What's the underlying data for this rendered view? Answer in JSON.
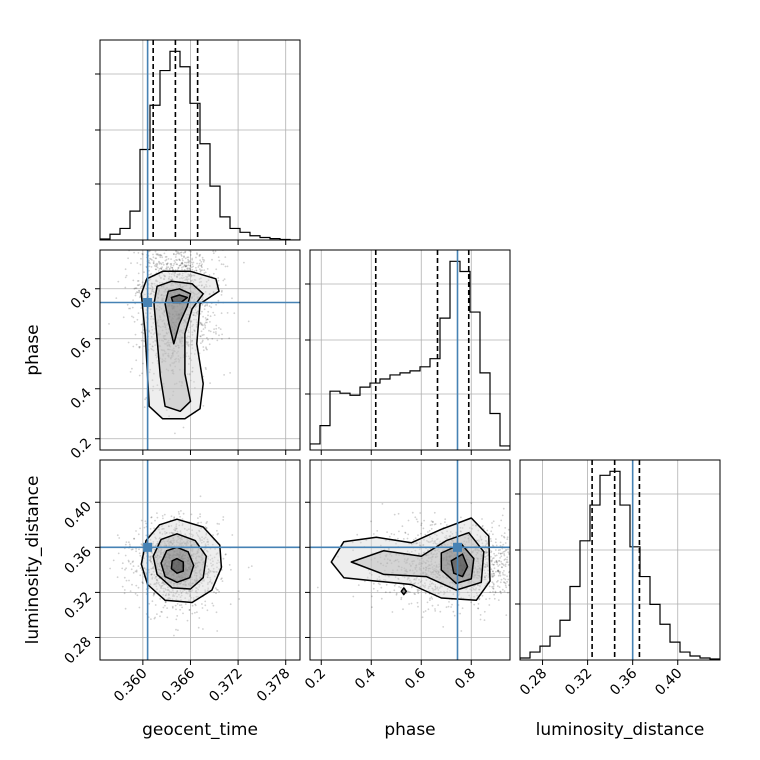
{
  "chart_data": {
    "type": "corner",
    "parameters": [
      "geocent_time",
      "phase",
      "luminosity_distance"
    ],
    "axis_labels": {
      "x": [
        "geocent_time",
        "phase",
        "luminosity_distance"
      ],
      "y": [
        "",
        "phase",
        "luminosity_distance"
      ]
    },
    "ranges": [
      [
        0.3546,
        0.3798
      ],
      [
        0.155,
        0.955
      ],
      [
        0.26,
        0.4375
      ]
    ],
    "ticks": [
      {
        "values": [
          0.36,
          0.366,
          0.372,
          0.378
        ],
        "labels": [
          "0.360",
          "0.366",
          "0.372",
          "0.378"
        ]
      },
      {
        "values": [
          0.2,
          0.4,
          0.6,
          0.8
        ],
        "labels": [
          "0.2",
          "0.4",
          "0.6",
          "0.8"
        ]
      },
      {
        "values": [
          0.28,
          0.32,
          0.36,
          0.4
        ],
        "labels": [
          "0.28",
          "0.32",
          "0.36",
          "0.40"
        ]
      }
    ],
    "truths": [
      0.3606,
      0.745,
      0.36
    ],
    "quantiles": [
      [
        0.3613,
        0.3641,
        0.3669
      ],
      [
        0.418,
        0.665,
        0.79
      ],
      [
        0.324,
        0.344,
        0.366
      ]
    ],
    "histograms": [
      {
        "parameter": "geocent_time",
        "bin_edges": [
          0.3546,
          0.35586,
          0.35712,
          0.35838,
          0.35964,
          0.3609,
          0.36216,
          0.36342,
          0.36468,
          0.36594,
          0.3672,
          0.36846,
          0.36972,
          0.37098,
          0.37224,
          0.3735,
          0.37476,
          0.37602,
          0.37728,
          0.37854,
          0.3798
        ],
        "counts": [
          0.005,
          0.03,
          0.06,
          0.15,
          0.47,
          0.7,
          0.88,
          0.98,
          0.9,
          0.71,
          0.5,
          0.28,
          0.12,
          0.06,
          0.04,
          0.022,
          0.013,
          0.007,
          0.003,
          0.0
        ]
      },
      {
        "parameter": "phase",
        "bin_edges": [
          0.155,
          0.195,
          0.235,
          0.275,
          0.315,
          0.355,
          0.395,
          0.435,
          0.475,
          0.515,
          0.555,
          0.595,
          0.635,
          0.675,
          0.715,
          0.755,
          0.795,
          0.835,
          0.875,
          0.915,
          0.955
        ],
        "counts": [
          0.03,
          0.12,
          0.29,
          0.28,
          0.27,
          0.31,
          0.33,
          0.35,
          0.37,
          0.38,
          0.39,
          0.41,
          0.45,
          0.65,
          0.93,
          0.88,
          0.68,
          0.38,
          0.18,
          0.02
        ]
      },
      {
        "parameter": "luminosity_distance",
        "bin_edges": [
          0.26,
          0.268875,
          0.27775,
          0.286625,
          0.2955,
          0.304375,
          0.31325,
          0.322125,
          0.331,
          0.339875,
          0.34875,
          0.357625,
          0.3665,
          0.375375,
          0.38425,
          0.393125,
          0.402,
          0.410875,
          0.41975,
          0.428625,
          0.4375
        ],
        "counts": [
          0.01,
          0.04,
          0.07,
          0.12,
          0.2,
          0.37,
          0.6,
          0.78,
          0.93,
          0.95,
          0.78,
          0.57,
          0.42,
          0.28,
          0.18,
          0.09,
          0.04,
          0.02,
          0.01,
          0.005
        ]
      }
    ],
    "pairs": [
      {
        "x": "geocent_time",
        "y": "phase",
        "mode": [
          0.3643,
          0.755
        ],
        "sd": [
          0.0026,
          0.16
        ],
        "contours": [
          [
            [
              0.3605,
              0.84
            ],
            [
              0.3625,
              0.87
            ],
            [
              0.366,
              0.87
            ],
            [
              0.3692,
              0.84
            ],
            [
              0.3696,
              0.79
            ],
            [
              0.3672,
              0.74
            ],
            [
              0.3668,
              0.58
            ],
            [
              0.3676,
              0.42
            ],
            [
              0.3672,
              0.32
            ],
            [
              0.3653,
              0.28
            ],
            [
              0.3625,
              0.28
            ],
            [
              0.3608,
              0.33
            ],
            [
              0.3606,
              0.45
            ],
            [
              0.3603,
              0.62
            ],
            [
              0.3598,
              0.78
            ]
          ],
          [
            [
              0.3618,
              0.81
            ],
            [
              0.3636,
              0.83
            ],
            [
              0.3662,
              0.82
            ],
            [
              0.3676,
              0.78
            ],
            [
              0.3662,
              0.72
            ],
            [
              0.3653,
              0.62
            ],
            [
              0.3653,
              0.46
            ],
            [
              0.366,
              0.35
            ],
            [
              0.3647,
              0.31
            ],
            [
              0.3628,
              0.33
            ],
            [
              0.3622,
              0.45
            ],
            [
              0.3618,
              0.6
            ],
            [
              0.3614,
              0.74
            ]
          ],
          [
            [
              0.3632,
              0.79
            ],
            [
              0.3646,
              0.8
            ],
            [
              0.366,
              0.78
            ],
            [
              0.3656,
              0.73
            ],
            [
              0.3646,
              0.66
            ],
            [
              0.3639,
              0.58
            ],
            [
              0.3633,
              0.66
            ],
            [
              0.3628,
              0.74
            ]
          ],
          [
            [
              0.3636,
              0.765
            ],
            [
              0.3646,
              0.775
            ],
            [
              0.3656,
              0.765
            ],
            [
              0.3648,
              0.745
            ],
            [
              0.3638,
              0.745
            ]
          ]
        ]
      },
      {
        "x": "geocent_time",
        "y": "luminosity_distance",
        "mode": [
          0.3643,
          0.344
        ],
        "sd": [
          0.0026,
          0.018
        ],
        "contours": [
          [
            [
              0.3643,
              0.385
            ],
            [
              0.3676,
              0.378
            ],
            [
              0.3697,
              0.362
            ],
            [
              0.3699,
              0.342
            ],
            [
              0.3687,
              0.322
            ],
            [
              0.3662,
              0.311
            ],
            [
              0.3628,
              0.313
            ],
            [
              0.3606,
              0.327
            ],
            [
              0.3598,
              0.345
            ],
            [
              0.3604,
              0.366
            ],
            [
              0.3621,
              0.38
            ]
          ],
          [
            [
              0.3643,
              0.372
            ],
            [
              0.3666,
              0.366
            ],
            [
              0.368,
              0.352
            ],
            [
              0.3676,
              0.333
            ],
            [
              0.366,
              0.323
            ],
            [
              0.3637,
              0.324
            ],
            [
              0.3618,
              0.336
            ],
            [
              0.3613,
              0.352
            ],
            [
              0.3623,
              0.367
            ]
          ],
          [
            [
              0.3643,
              0.36
            ],
            [
              0.3657,
              0.356
            ],
            [
              0.3664,
              0.344
            ],
            [
              0.3659,
              0.333
            ],
            [
              0.3643,
              0.329
            ],
            [
              0.3628,
              0.334
            ],
            [
              0.3623,
              0.346
            ],
            [
              0.363,
              0.357
            ]
          ],
          [
            [
              0.3643,
              0.35
            ],
            [
              0.3651,
              0.347
            ],
            [
              0.3651,
              0.339
            ],
            [
              0.3643,
              0.337
            ],
            [
              0.3636,
              0.341
            ],
            [
              0.3637,
              0.348
            ]
          ]
        ]
      },
      {
        "x": "phase",
        "y": "luminosity_distance",
        "mode": [
          0.745,
          0.345
        ],
        "sd": [
          0.17,
          0.018
        ],
        "contours": [
          [
            [
              0.24,
              0.347
            ],
            [
              0.29,
              0.365
            ],
            [
              0.42,
              0.369
            ],
            [
              0.56,
              0.364
            ],
            [
              0.68,
              0.376
            ],
            [
              0.8,
              0.386
            ],
            [
              0.87,
              0.37
            ],
            [
              0.875,
              0.33
            ],
            [
              0.82,
              0.313
            ],
            [
              0.68,
              0.315
            ],
            [
              0.56,
              0.327
            ],
            [
              0.42,
              0.33
            ],
            [
              0.29,
              0.333
            ]
          ],
          [
            [
              0.32,
              0.347
            ],
            [
              0.45,
              0.357
            ],
            [
              0.6,
              0.352
            ],
            [
              0.7,
              0.366
            ],
            [
              0.79,
              0.373
            ],
            [
              0.85,
              0.356
            ],
            [
              0.84,
              0.329
            ],
            [
              0.74,
              0.322
            ],
            [
              0.62,
              0.334
            ],
            [
              0.45,
              0.336
            ]
          ],
          [
            [
              0.68,
              0.355
            ],
            [
              0.76,
              0.363
            ],
            [
              0.81,
              0.35
            ],
            [
              0.8,
              0.332
            ],
            [
              0.74,
              0.328
            ],
            [
              0.68,
              0.34
            ]
          ],
          [
            [
              0.72,
              0.348
            ],
            [
              0.765,
              0.354
            ],
            [
              0.785,
              0.343
            ],
            [
              0.765,
              0.334
            ],
            [
              0.73,
              0.337
            ]
          ],
          [
            [
              0.52,
              0.321
            ],
            [
              0.53,
              0.324
            ],
            [
              0.54,
              0.321
            ],
            [
              0.53,
              0.318
            ]
          ]
        ]
      }
    ]
  }
}
